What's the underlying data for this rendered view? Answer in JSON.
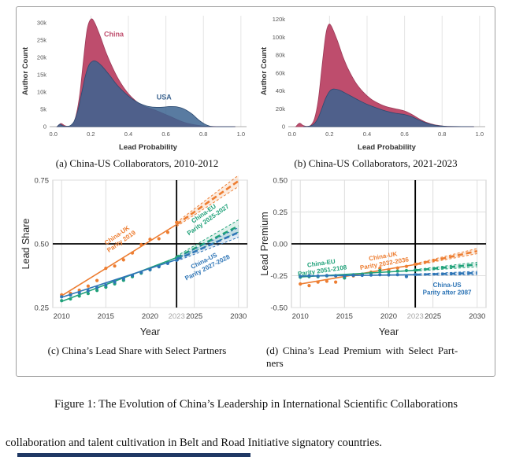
{
  "figure": {
    "caption": "Figure 1: The Evolution of China’s Leadership in International Scientific Collaborations",
    "body_text": "collaboration and talent cultivation in Belt and Road Initiative signatory countries."
  },
  "panels": {
    "a": {
      "caption": "(a) China-US Collaborators, 2010-2012"
    },
    "b": {
      "caption": "(b) China-US Collaborators, 2021-2023"
    },
    "c": {
      "caption": "(c) China’s Lead Share with Select Partners"
    },
    "d": {
      "caption_line1": "(d) China’s Lead Premium with Select Part-",
      "caption_line2": "ners"
    }
  },
  "colors": {
    "china_red": "#be4d6d",
    "usa_blue": "#3c6490",
    "uk_orange": "#ed7d31",
    "eu_green": "#1fa179",
    "us_blue": "#2e75b6",
    "ref_black": "#000000",
    "grid_gray": "#e0e0e0",
    "muted_tick": "#a6a6a6"
  },
  "chart_data": [
    {
      "id": "a",
      "type": "area",
      "xlabel": "Lead Probability",
      "ylabel": "Author Count",
      "xlim": [
        -0.02,
        1.03
      ],
      "ylim": [
        0,
        32000
      ],
      "xticks": [
        0.0,
        0.2,
        0.4,
        0.6,
        0.8,
        1.0
      ],
      "xtick_labels": [
        "0.0",
        "0.2",
        "0.4",
        "0.6",
        "0.8",
        "1.0"
      ],
      "yticks": [
        0,
        5000,
        10000,
        15000,
        20000,
        25000,
        30000
      ],
      "ytick_labels": [
        "0",
        "5k",
        "10k",
        "15k",
        "20k",
        "25k",
        "30k"
      ],
      "grid_x": [
        0.2,
        0.4,
        0.6,
        0.8,
        1.0
      ],
      "series": [
        {
          "name": "China",
          "color": "#be4d6d",
          "stroke": "#9c3a58",
          "opacity": 1,
          "points": [
            [
              0.02,
              0
            ],
            [
              0.04,
              900
            ],
            [
              0.06,
              300
            ],
            [
              0.08,
              100
            ],
            [
              0.1,
              500
            ],
            [
              0.12,
              3000
            ],
            [
              0.14,
              9000
            ],
            [
              0.16,
              19000
            ],
            [
              0.18,
              28000
            ],
            [
              0.2,
              31000
            ],
            [
              0.22,
              30000
            ],
            [
              0.25,
              26000
            ],
            [
              0.28,
              21500
            ],
            [
              0.32,
              16500
            ],
            [
              0.36,
              12500
            ],
            [
              0.4,
              9500
            ],
            [
              0.44,
              7400
            ],
            [
              0.48,
              6000
            ],
            [
              0.55,
              4600
            ],
            [
              0.62,
              3000
            ],
            [
              0.7,
              1200
            ],
            [
              0.78,
              300
            ],
            [
              0.85,
              50
            ],
            [
              0.97,
              0
            ]
          ]
        },
        {
          "name": "USA",
          "color": "#3c6490",
          "stroke": "#2c4a70",
          "opacity": 0.85,
          "points": [
            [
              0.02,
              0
            ],
            [
              0.035,
              700
            ],
            [
              0.05,
              250
            ],
            [
              0.07,
              80
            ],
            [
              0.09,
              300
            ],
            [
              0.11,
              1500
            ],
            [
              0.13,
              4500
            ],
            [
              0.15,
              9500
            ],
            [
              0.17,
              14500
            ],
            [
              0.19,
              17800
            ],
            [
              0.21,
              18900
            ],
            [
              0.23,
              18800
            ],
            [
              0.26,
              17400
            ],
            [
              0.3,
              14800
            ],
            [
              0.34,
              12000
            ],
            [
              0.38,
              9800
            ],
            [
              0.42,
              8000
            ],
            [
              0.46,
              6700
            ],
            [
              0.5,
              5900
            ],
            [
              0.54,
              5600
            ],
            [
              0.58,
              5600
            ],
            [
              0.62,
              5800
            ],
            [
              0.66,
              5700
            ],
            [
              0.7,
              5000
            ],
            [
              0.74,
              3600
            ],
            [
              0.78,
              1700
            ],
            [
              0.82,
              400
            ],
            [
              0.86,
              0
            ],
            [
              0.97,
              0
            ]
          ]
        }
      ],
      "labels": [
        {
          "text": "China",
          "x": 0.27,
          "y": 26000,
          "color": "#c0506f"
        },
        {
          "text": "USA",
          "x": 0.55,
          "y": 7800,
          "color": "#3c6490"
        }
      ]
    },
    {
      "id": "b",
      "type": "area",
      "xlabel": "Lead Probability",
      "ylabel": "Author Count",
      "xlim": [
        -0.02,
        1.03
      ],
      "ylim": [
        0,
        124000
      ],
      "xticks": [
        0.0,
        0.2,
        0.4,
        0.6,
        0.8,
        1.0
      ],
      "xtick_labels": [
        "0.0",
        "0.2",
        "0.4",
        "0.6",
        "0.8",
        "1.0"
      ],
      "yticks": [
        0,
        20000,
        40000,
        60000,
        80000,
        100000,
        120000
      ],
      "ytick_labels": [
        "0",
        "20k",
        "40k",
        "60k",
        "80k",
        "100k",
        "120k"
      ],
      "grid_x": [
        0.2,
        0.4,
        0.6,
        0.8,
        1.0
      ],
      "series": [
        {
          "name": "China",
          "color": "#be4d6d",
          "stroke": "#9c3a58",
          "opacity": 1,
          "points": [
            [
              0.02,
              0
            ],
            [
              0.04,
              3800
            ],
            [
              0.06,
              1200
            ],
            [
              0.08,
              300
            ],
            [
              0.1,
              1500
            ],
            [
              0.12,
              9000
            ],
            [
              0.14,
              30000
            ],
            [
              0.16,
              68000
            ],
            [
              0.18,
              103000
            ],
            [
              0.195,
              114000
            ],
            [
              0.21,
              112000
            ],
            [
              0.24,
              97000
            ],
            [
              0.27,
              79000
            ],
            [
              0.3,
              64000
            ],
            [
              0.34,
              49000
            ],
            [
              0.38,
              38500
            ],
            [
              0.42,
              31000
            ],
            [
              0.46,
              26000
            ],
            [
              0.5,
              22500
            ],
            [
              0.55,
              20000
            ],
            [
              0.6,
              17500
            ],
            [
              0.64,
              13500
            ],
            [
              0.68,
              8500
            ],
            [
              0.72,
              4500
            ],
            [
              0.76,
              2000
            ],
            [
              0.8,
              800
            ],
            [
              0.85,
              200
            ],
            [
              0.97,
              0
            ]
          ]
        },
        {
          "name": "USA",
          "color": "#3c6490",
          "stroke": "#2c4a70",
          "opacity": 0.85,
          "points": [
            [
              0.06,
              0
            ],
            [
              0.08,
              200
            ],
            [
              0.1,
              900
            ],
            [
              0.12,
              3500
            ],
            [
              0.14,
              10000
            ],
            [
              0.16,
              21000
            ],
            [
              0.18,
              32000
            ],
            [
              0.2,
              39500
            ],
            [
              0.22,
              42000
            ],
            [
              0.25,
              41000
            ],
            [
              0.28,
              38000
            ],
            [
              0.32,
              33500
            ],
            [
              0.36,
              29000
            ],
            [
              0.4,
              25000
            ],
            [
              0.45,
              21000
            ],
            [
              0.5,
              17500
            ],
            [
              0.55,
              15000
            ],
            [
              0.6,
              13500
            ],
            [
              0.64,
              11000
            ],
            [
              0.68,
              7000
            ],
            [
              0.72,
              3800
            ],
            [
              0.76,
              1700
            ],
            [
              0.8,
              700
            ],
            [
              0.84,
              200
            ],
            [
              0.97,
              0
            ]
          ]
        }
      ],
      "labels": []
    },
    {
      "id": "c",
      "type": "scatter",
      "xlabel": "Year",
      "ylabel": "Lead Share",
      "xlim": [
        2009,
        2031
      ],
      "ylim": [
        0.25,
        0.75
      ],
      "xticks": [
        {
          "v": 2010,
          "label": "2010"
        },
        {
          "v": 2015,
          "label": "2015"
        },
        {
          "v": 2020,
          "label": "2020"
        },
        {
          "v": 2023,
          "label": "2023",
          "color": "#a6a6a6"
        },
        {
          "v": 2025,
          "label": "2025"
        },
        {
          "v": 2030,
          "label": "2030"
        }
      ],
      "yticks": [
        {
          "v": 0.25,
          "label": "0.25"
        },
        {
          "v": 0.5,
          "label": "0.50"
        },
        {
          "v": 0.75,
          "label": "0.75"
        }
      ],
      "grid_x": [
        2010,
        2015,
        2020,
        2025,
        2030
      ],
      "grid_y": [
        0.25,
        0.75
      ],
      "ref": {
        "h": 0.5,
        "v": 2023
      },
      "years": [
        2010,
        2011,
        2012,
        2013,
        2014,
        2015,
        2016,
        2017,
        2018,
        2019,
        2020,
        2021,
        2022,
        2023
      ],
      "series": [
        {
          "name": "China-UK",
          "color": "#ed7d31",
          "values": [
            0.3,
            0.306,
            0.318,
            0.334,
            0.356,
            0.404,
            0.413,
            0.437,
            0.464,
            0.497,
            0.518,
            0.52,
            0.545,
            0.584
          ],
          "trend": {
            "y0": 0.296,
            "y1": 0.576
          },
          "proj_y": 0.747,
          "band0": 0.008,
          "band1": 0.022
        },
        {
          "name": "China-EU",
          "color": "#1fa179",
          "values": [
            0.277,
            0.284,
            0.295,
            0.305,
            0.317,
            0.33,
            0.343,
            0.357,
            0.371,
            0.385,
            0.398,
            0.412,
            0.427,
            0.446
          ],
          "trend": {
            "y0": 0.274,
            "y1": 0.446
          },
          "proj_y": 0.57,
          "band0": 0.006,
          "band1": 0.024
        },
        {
          "name": "China-US",
          "color": "#2e75b6",
          "values": [
            0.292,
            0.299,
            0.308,
            0.316,
            0.328,
            0.338,
            0.35,
            0.363,
            0.376,
            0.388,
            0.399,
            0.41,
            0.423,
            0.436
          ],
          "trend": {
            "y0": 0.29,
            "y1": 0.438
          },
          "proj_y": 0.545,
          "band0": 0.006,
          "band1": 0.019
        }
      ],
      "annotations": [
        {
          "lines": [
            "China-UK",
            "Parity 2019"
          ],
          "x": 2016.4,
          "y": 0.527,
          "color": "#ed7d31",
          "rotate": -35
        },
        {
          "lines": [
            "China-EU",
            "Parity 2025-2027"
          ],
          "x": 2026.2,
          "y": 0.612,
          "color": "#1fa179",
          "rotate": -35
        },
        {
          "lines": [
            "China-US",
            "Parity 2027-2028"
          ],
          "x": 2026.2,
          "y": 0.426,
          "color": "#2e75b6",
          "rotate": -27
        }
      ]
    },
    {
      "id": "d",
      "type": "scatter",
      "xlabel": "Year",
      "ylabel": "Lead Premium",
      "xlim": [
        2009,
        2031
      ],
      "ylim": [
        -0.5,
        0.5
      ],
      "xticks": [
        {
          "v": 2010,
          "label": "2010"
        },
        {
          "v": 2015,
          "label": "2015"
        },
        {
          "v": 2020,
          "label": "2020"
        },
        {
          "v": 2023,
          "label": "2023",
          "color": "#a6a6a6"
        },
        {
          "v": 2025,
          "label": "2025"
        },
        {
          "v": 2030,
          "label": "2030"
        }
      ],
      "yticks": [
        {
          "v": 0.5,
          "label": "0.50"
        },
        {
          "v": 0.25,
          "label": "0.25"
        },
        {
          "v": 0.0,
          "label": "0.00"
        },
        {
          "v": -0.25,
          "label": "-0.25"
        },
        {
          "v": -0.5,
          "label": "-0.50"
        }
      ],
      "grid_x": [
        2010,
        2015,
        2020,
        2025,
        2030
      ],
      "grid_y": [
        0.5,
        0.25,
        -0.25,
        -0.5
      ],
      "ref": {
        "h": 0.0,
        "v": 2023
      },
      "years": [
        2010,
        2011,
        2012,
        2013,
        2014,
        2015,
        2016,
        2017,
        2018,
        2019,
        2020,
        2021,
        2022,
        2023
      ],
      "series": [
        {
          "name": "China-UK",
          "color": "#ed7d31",
          "values": [
            -0.315,
            -0.328,
            -0.3,
            -0.293,
            -0.3,
            -0.262,
            -0.252,
            -0.24,
            -0.222,
            -0.192,
            -0.203,
            -0.19,
            -0.177,
            -0.16
          ],
          "trend": {
            "y0": -0.315,
            "y1": -0.162
          },
          "proj_y": -0.057,
          "band0": 0.007,
          "band1": 0.02
        },
        {
          "name": "China-EU",
          "color": "#1fa179",
          "values": [
            -0.262,
            -0.257,
            -0.258,
            -0.251,
            -0.25,
            -0.268,
            -0.243,
            -0.238,
            -0.23,
            -0.21,
            -0.22,
            -0.214,
            -0.21,
            -0.206
          ],
          "trend": {
            "y0": -0.26,
            "y1": -0.208
          },
          "proj_y": -0.162,
          "band0": 0.006,
          "band1": 0.018
        },
        {
          "name": "China-US",
          "color": "#2e75b6",
          "values": [
            -0.255,
            -0.251,
            -0.253,
            -0.249,
            -0.251,
            -0.253,
            -0.247,
            -0.247,
            -0.245,
            -0.242,
            -0.244,
            -0.242,
            -0.257,
            -0.241
          ],
          "trend": {
            "y0": -0.253,
            "y1": -0.242
          },
          "proj_y": -0.229,
          "band0": 0.005,
          "band1": 0.013
        }
      ],
      "annotations": [
        {
          "lines": [
            "China-EU",
            "Parity 2051-2108"
          ],
          "x": 2012.4,
          "y": -0.168,
          "color": "#1fa179",
          "rotate": -8
        },
        {
          "lines": [
            "China-UK",
            "Parity 2032-2036"
          ],
          "x": 2019.4,
          "y": -0.113,
          "color": "#ed7d31",
          "rotate": -10
        },
        {
          "lines": [
            "China-US",
            "Parity after 2087"
          ],
          "x": 2026.6,
          "y": -0.338,
          "color": "#2e75b6",
          "rotate": 0
        }
      ]
    }
  ]
}
